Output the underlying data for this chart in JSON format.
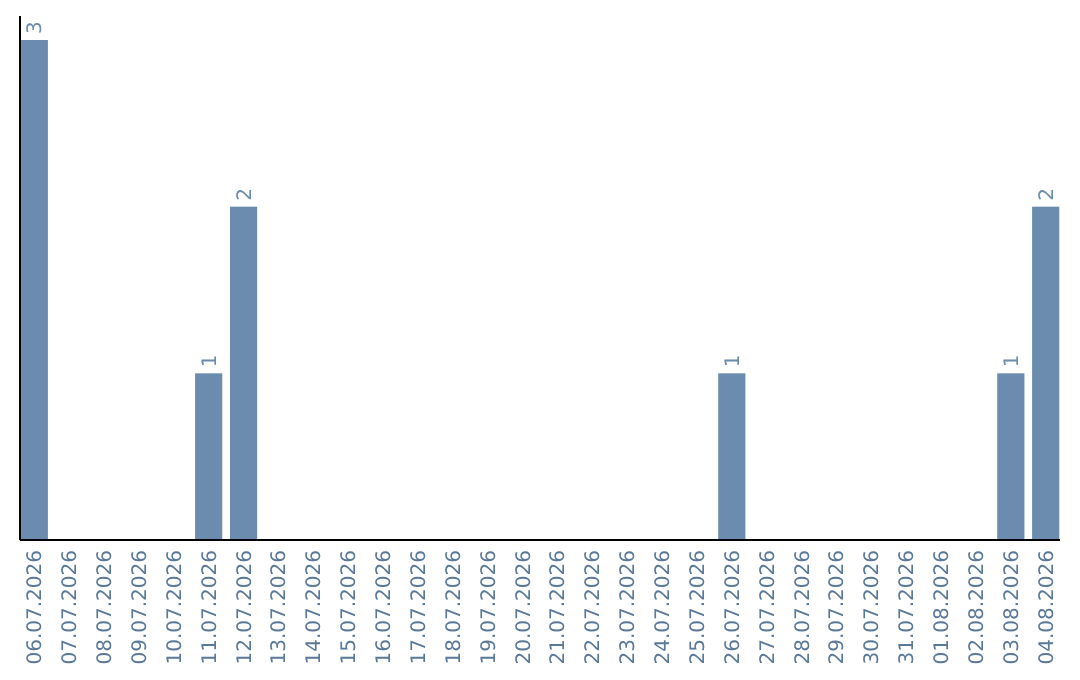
{
  "chart_data": {
    "type": "bar",
    "categories": [
      "06.07.2026",
      "07.07.2026",
      "08.07.2026",
      "09.07.2026",
      "10.07.2026",
      "11.07.2026",
      "12.07.2026",
      "13.07.2026",
      "14.07.2026",
      "15.07.2026",
      "16.07.2026",
      "17.07.2026",
      "18.07.2026",
      "19.07.2026",
      "20.07.2026",
      "21.07.2026",
      "22.07.2026",
      "23.07.2026",
      "24.07.2026",
      "25.07.2026",
      "26.07.2026",
      "27.07.2026",
      "28.07.2026",
      "29.07.2026",
      "30.07.2026",
      "31.07.2026",
      "01.08.2026",
      "02.08.2026",
      "03.08.2026",
      "04.08.2026"
    ],
    "values": [
      3,
      0,
      0,
      0,
      0,
      1,
      2,
      0,
      0,
      0,
      0,
      0,
      0,
      0,
      0,
      0,
      0,
      0,
      0,
      0,
      1,
      0,
      0,
      0,
      0,
      0,
      0,
      0,
      1,
      2
    ],
    "value_labels": [
      "3",
      null,
      null,
      null,
      null,
      "1",
      "2",
      null,
      null,
      null,
      null,
      null,
      null,
      null,
      null,
      null,
      null,
      null,
      null,
      null,
      "1",
      null,
      null,
      null,
      null,
      null,
      null,
      null,
      "1",
      "2"
    ],
    "color": "#6b8cae"
  }
}
